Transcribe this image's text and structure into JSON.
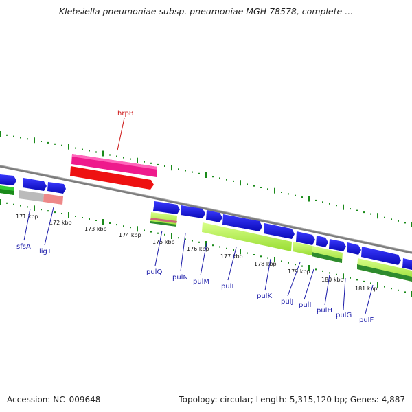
{
  "title": "Klebsiella pneumoniae subsp. pneumoniae MGH 78578, complete ...",
  "footer": {
    "accession": "Accession: NC_009648",
    "summary": "Topology: circular; Length: 5,315,120 bp; Genes: 4,887"
  },
  "colors": {
    "forward_gene": "#1414e0",
    "reverse_gene": "#ee1111",
    "hrpB": "#ee1a8c",
    "cds_light": "#aaee44",
    "cds_dark": "#2e8b2e",
    "pseudo_gray": "#bbbbbb",
    "pseudo_pink": "#ee8888",
    "backbone": "#888888",
    "tick": "#1a8a1a",
    "label_blue": "#1a1aa8",
    "label_red": "#cc1111"
  },
  "scale_labels": [
    "171 kbp",
    "172 kbp",
    "173 kbp",
    "174 kbp",
    "175 kbp",
    "176 kbp",
    "177 kbp",
    "178 kbp",
    "179 kbp",
    "180 kbp",
    "181 kbp"
  ],
  "gene_labels": [
    {
      "name": "hrpB",
      "strand": "reverse"
    },
    {
      "name": "sfsA",
      "strand": "forward"
    },
    {
      "name": "ligT",
      "strand": "forward"
    },
    {
      "name": "pulQ",
      "strand": "forward"
    },
    {
      "name": "pulN",
      "strand": "forward"
    },
    {
      "name": "pulM",
      "strand": "forward"
    },
    {
      "name": "pulL",
      "strand": "forward"
    },
    {
      "name": "pulK",
      "strand": "forward"
    },
    {
      "name": "pulJ",
      "strand": "forward"
    },
    {
      "name": "pulI",
      "strand": "forward"
    },
    {
      "name": "pulH",
      "strand": "forward"
    },
    {
      "name": "pulG",
      "strand": "forward"
    },
    {
      "name": "pulF",
      "strand": "forward"
    }
  ]
}
